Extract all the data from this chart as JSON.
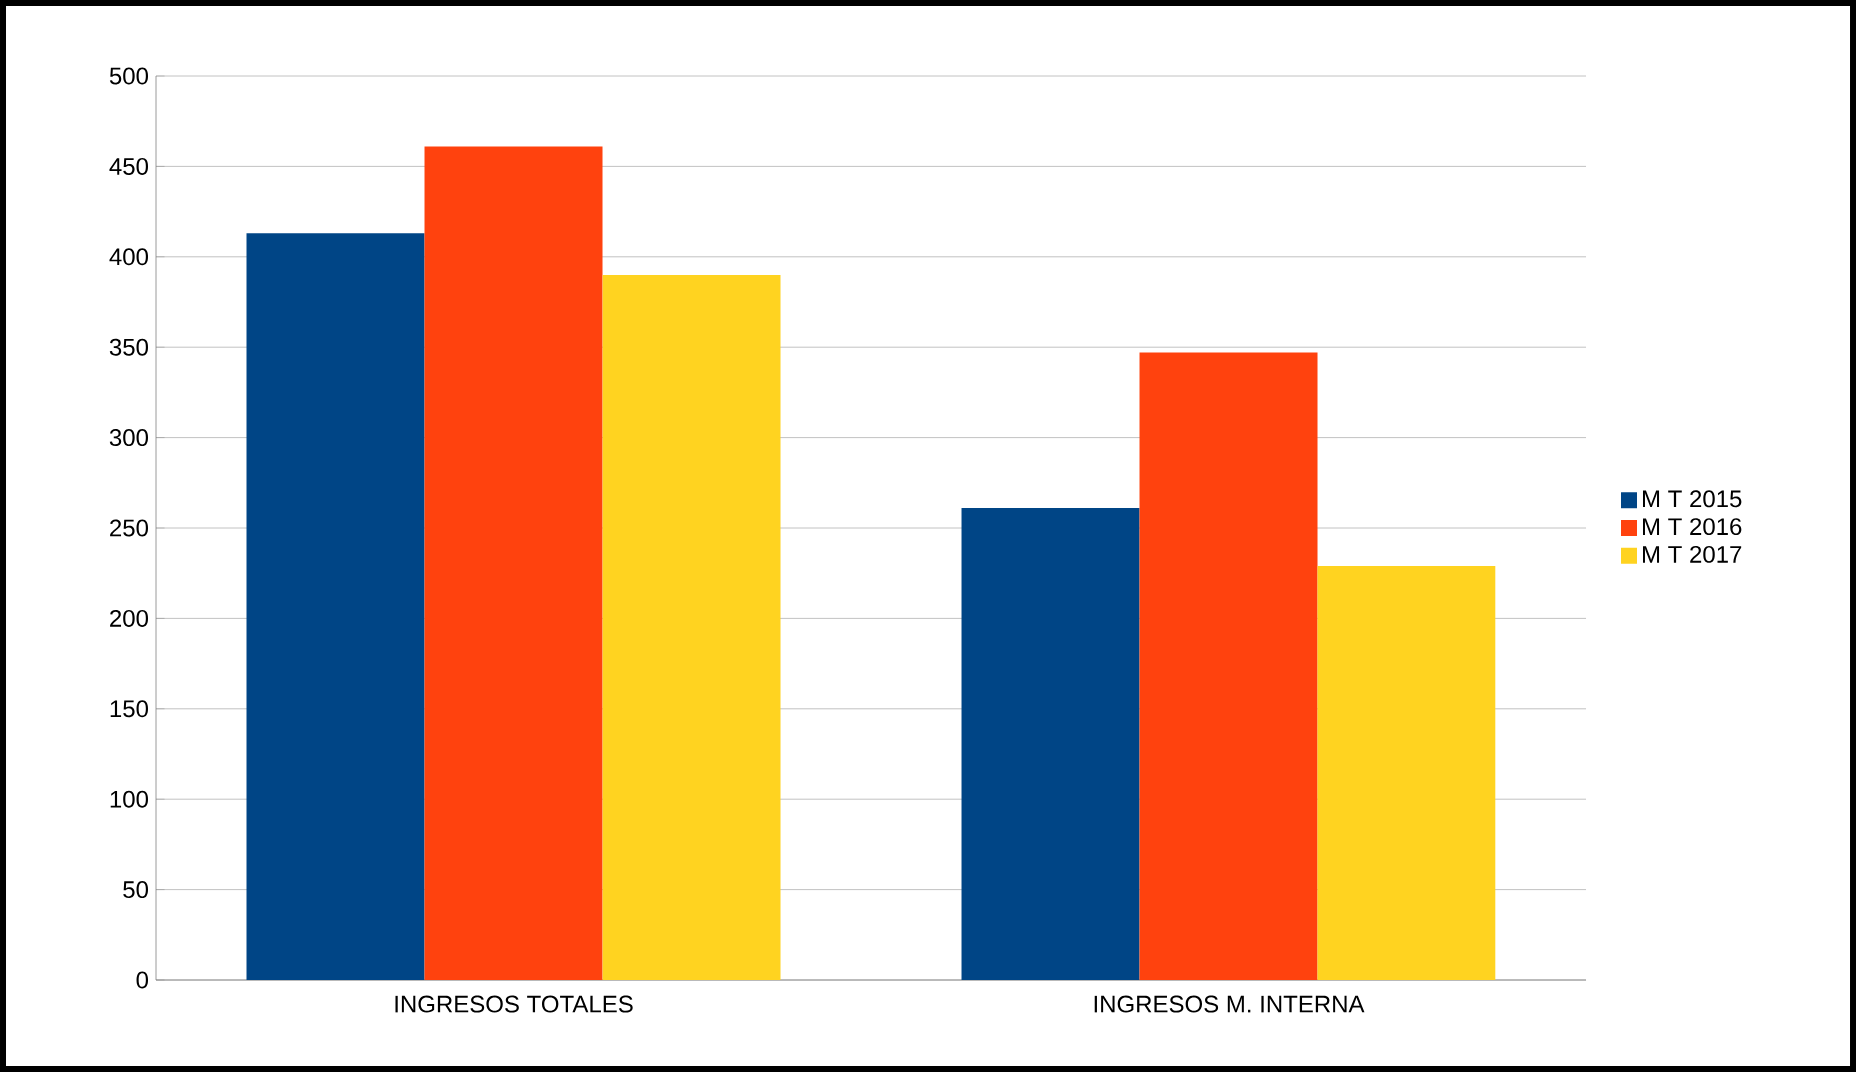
{
  "chart_data": {
    "type": "bar",
    "categories": [
      "INGRESOS TOTALES",
      "INGRESOS M. INTERNA"
    ],
    "series": [
      {
        "name": "M T 2015",
        "color": "#004586",
        "values": [
          413,
          261
        ]
      },
      {
        "name": "M T 2016",
        "color": "#ff420e",
        "values": [
          461,
          347
        ]
      },
      {
        "name": "M T 2017",
        "color": "#ffd320",
        "values": [
          390,
          229
        ]
      }
    ],
    "ylim": [
      0,
      500
    ],
    "yticks": [
      0,
      50,
      100,
      150,
      200,
      250,
      300,
      350,
      400,
      450,
      500
    ],
    "grid": "y",
    "legend": "right"
  }
}
